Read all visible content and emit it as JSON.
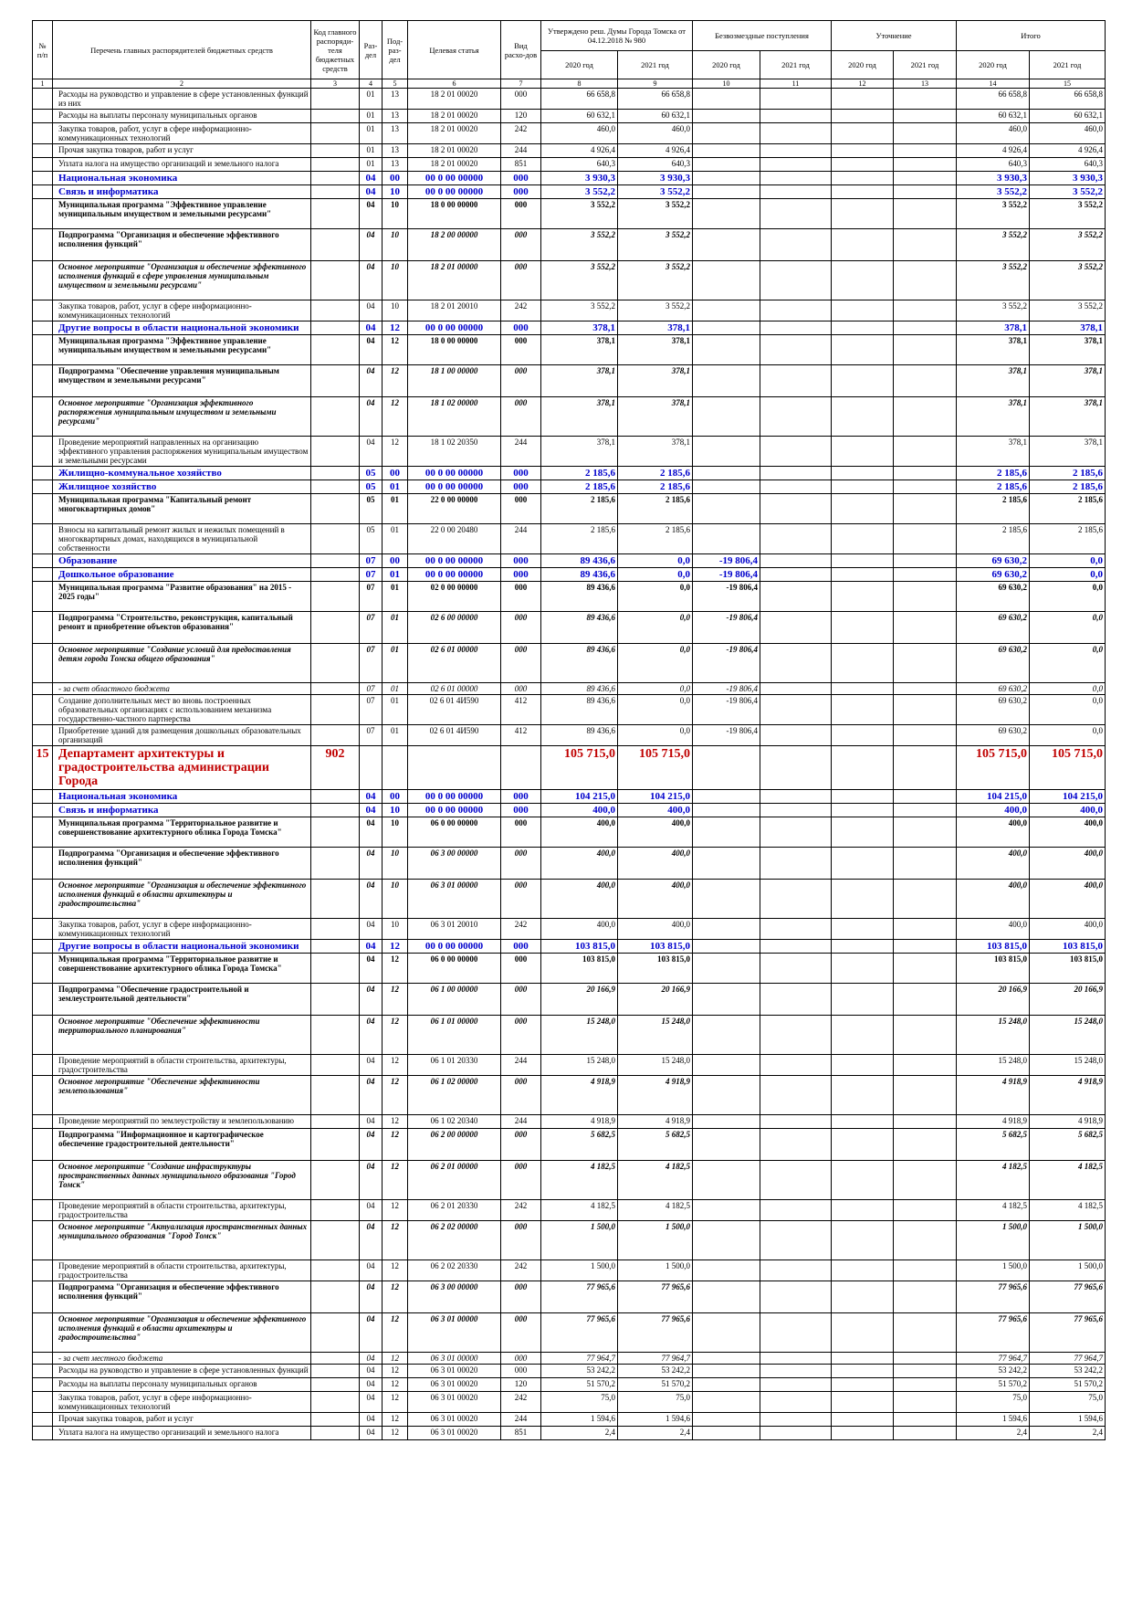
{
  "header": {
    "columns": [
      "№ п/п",
      "Перечень главных распорядителей бюджетных средств",
      "Код главного распоряди-теля бюджетных средств",
      "Раз-дел",
      "Под-раз-дел",
      "Целевая статья",
      "Вид расхо-дов"
    ],
    "groups": [
      "Утверждено реш. Думы Города Томска от 04.12.2018 № 980",
      "Безвозмездные поступления",
      "Уточнение",
      "Итого"
    ],
    "years": [
      "2020 год",
      "2021 год",
      "2020 год",
      "2021 год",
      "2020 год",
      "2021 год",
      "2020 год",
      "2021 год"
    ],
    "numbers": [
      "1",
      "2",
      "3",
      "4",
      "5",
      "6",
      "7",
      "8",
      "9",
      "10",
      "11",
      "12",
      "13",
      "14",
      "15"
    ]
  },
  "table": {
    "rows": [
      {
        "kind": "normal",
        "name": "Расходы на руководство и управление в сфере установленных функций из них",
        "sec": "01",
        "sub": "13",
        "target": "18 2 01 00020",
        "type": "000",
        "a20": "66 658,8",
        "a21": "66 658,8",
        "t20": "66 658,8",
        "t21": "66 658,8"
      },
      {
        "kind": "normal",
        "name": "Расходы на выплаты персоналу муниципальных органов",
        "sec": "01",
        "sub": "13",
        "target": "18 2 01 00020",
        "type": "120",
        "a20": "60 632,1",
        "a21": "60 632,1",
        "t20": "60 632,1",
        "t21": "60 632,1"
      },
      {
        "kind": "normal",
        "name": "Закупка товаров, работ, услуг в сфере информационно-коммуникационных технологий",
        "sec": "01",
        "sub": "13",
        "target": "18 2 01 00020",
        "type": "242",
        "a20": "460,0",
        "a21": "460,0",
        "t20": "460,0",
        "t21": "460,0"
      },
      {
        "kind": "normal",
        "name": "Прочая закупка товаров, работ и услуг",
        "sec": "01",
        "sub": "13",
        "target": "18 2 01 00020",
        "type": "244",
        "a20": "4 926,4",
        "a21": "4 926,4",
        "t20": "4 926,4",
        "t21": "4 926,4"
      },
      {
        "kind": "normal",
        "name": "Уплата налога на имущество организаций и земельного налога",
        "sec": "01",
        "sub": "13",
        "target": "18 2 01 00020",
        "type": "851",
        "a20": "640,3",
        "a21": "640,3",
        "t20": "640,3",
        "t21": "640,3"
      },
      {
        "kind": "blue",
        "name": "Национальная экономика",
        "sec": "04",
        "sub": "00",
        "target": "00 0 00 00000",
        "type": "000",
        "a20": "3 930,3",
        "a21": "3 930,3",
        "t20": "3 930,3",
        "t21": "3 930,3"
      },
      {
        "kind": "blue",
        "name": "Связь и информатика",
        "sec": "04",
        "sub": "10",
        "target": "00 0 00 00000",
        "type": "000",
        "a20": "3 552,2",
        "a21": "3 552,2",
        "t20": "3 552,2",
        "t21": "3 552,2"
      },
      {
        "kind": "program",
        "name": "Муниципальная программа \"Эффективное управление муниципальным имуществом и земельными ресурсами\"",
        "sec": "04",
        "sub": "10",
        "target": "18 0 00 00000",
        "type": "000",
        "a20": "3 552,2",
        "a21": "3 552,2",
        "t20": "3 552,2",
        "t21": "3 552,2"
      },
      {
        "kind": "subprogram",
        "name": "Подпрограмма \"Организация и обеспечение эффективного исполнения функций\"",
        "sec": "04",
        "sub": "10",
        "target": "18 2 00 00000",
        "type": "000",
        "a20": "3 552,2",
        "a21": "3 552,2",
        "t20": "3 552,2",
        "t21": "3 552,2"
      },
      {
        "kind": "measure",
        "name": "Основное мероприятие \"Организация и обеспечение эффективного исполнения функций в сфере управления муниципальным имуществом и земельными ресурсами\"",
        "sec": "04",
        "sub": "10",
        "target": "18 2 01 00000",
        "type": "000",
        "a20": "3 552,2",
        "a21": "3 552,2",
        "t20": "3 552,2",
        "t21": "3 552,2"
      },
      {
        "kind": "normal",
        "name": "Закупка товаров, работ, услуг в сфере информационно-коммуникационных технологий",
        "sec": "04",
        "sub": "10",
        "target": "18 2 01 20010",
        "type": "242",
        "a20": "3 552,2",
        "a21": "3 552,2",
        "t20": "3 552,2",
        "t21": "3 552,2"
      },
      {
        "kind": "blue",
        "name": "Другие вопросы в области национальной экономики",
        "sec": "04",
        "sub": "12",
        "target": "00 0 00 00000",
        "type": "000",
        "a20": "378,1",
        "a21": "378,1",
        "t20": "378,1",
        "t21": "378,1"
      },
      {
        "kind": "program",
        "name": "Муниципальная программа \"Эффективное управление муниципальным имуществом и земельными ресурсами\"",
        "sec": "04",
        "sub": "12",
        "target": "18 0 00 00000",
        "type": "000",
        "a20": "378,1",
        "a21": "378,1",
        "t20": "378,1",
        "t21": "378,1"
      },
      {
        "kind": "subprogram",
        "name": "Подпрограмма \"Обеспечение управления муниципальным имуществом и земельными ресурсами\"",
        "sec": "04",
        "sub": "12",
        "target": "18 1 00 00000",
        "type": "000",
        "a20": "378,1",
        "a21": "378,1",
        "t20": "378,1",
        "t21": "378,1"
      },
      {
        "kind": "measure",
        "name": "Основное мероприятие \"Организация эффективного распоряжения муниципальным имуществом и земельными ресурсами\"",
        "sec": "04",
        "sub": "12",
        "target": "18 1 02 00000",
        "type": "000",
        "a20": "378,1",
        "a21": "378,1",
        "t20": "378,1",
        "t21": "378,1"
      },
      {
        "kind": "normal",
        "name": "Проведение мероприятий направленных на организацию эффективного управления распоряжения муниципальным имуществом и земельными ресурсами",
        "sec": "04",
        "sub": "12",
        "target": "18 1 02 20350",
        "type": "244",
        "a20": "378,1",
        "a21": "378,1",
        "t20": "378,1",
        "t21": "378,1"
      },
      {
        "kind": "blue",
        "name": "Жилищно-коммунальное хозяйство",
        "sec": "05",
        "sub": "00",
        "target": "00 0 00 00000",
        "type": "000",
        "a20": "2 185,6",
        "a21": "2 185,6",
        "t20": "2 185,6",
        "t21": "2 185,6"
      },
      {
        "kind": "blue",
        "name": "Жилищное хозяйство",
        "sec": "05",
        "sub": "01",
        "target": "00 0 00 00000",
        "type": "000",
        "a20": "2 185,6",
        "a21": "2 185,6",
        "t20": "2 185,6",
        "t21": "2 185,6"
      },
      {
        "kind": "program",
        "name": "Муниципальная программа \"Капитальный ремонт многоквартирных домов\"",
        "sec": "05",
        "sub": "01",
        "target": "22 0 00 00000",
        "type": "000",
        "a20": "2 185,6",
        "a21": "2 185,6",
        "t20": "2 185,6",
        "t21": "2 185,6"
      },
      {
        "kind": "normal",
        "name": "Взносы на капитальный ремонт жилых и нежилых помещений в многоквартирных домах, находящихся в муниципальной собственности",
        "sec": "05",
        "sub": "01",
        "target": "22 0 00 20480",
        "type": "244",
        "a20": "2 185,6",
        "a21": "2 185,6",
        "t20": "2 185,6",
        "t21": "2 185,6"
      },
      {
        "kind": "blue",
        "name": "Образование",
        "sec": "07",
        "sub": "00",
        "target": "00 0 00 00000",
        "type": "000",
        "a20": "89 436,6",
        "a21": "0,0",
        "g20": "-19 806,4",
        "t20": "69 630,2",
        "t21": "0,0"
      },
      {
        "kind": "blue",
        "name": "Дошкольное образование",
        "sec": "07",
        "sub": "01",
        "target": "00 0 00 00000",
        "type": "000",
        "a20": "89 436,6",
        "a21": "0,0",
        "g20": "-19 806,4",
        "t20": "69 630,2",
        "t21": "0,0"
      },
      {
        "kind": "program",
        "name": "Муниципальная программа \"Развитие образования\" на 2015 - 2025 годы\"",
        "sec": "07",
        "sub": "01",
        "target": "02 0 00 00000",
        "type": "000",
        "a20": "89 436,6",
        "a21": "0,0",
        "g20": "-19 806,4",
        "t20": "69 630,2",
        "t21": "0,0"
      },
      {
        "kind": "subprogram",
        "name": "Подпрограмма \"Строительство, реконструкция, капитальный ремонт и приобретение объектов образования\"",
        "sec": "07",
        "sub": "01",
        "target": "02 6 00 00000",
        "type": "000",
        "a20": "89 436,6",
        "a21": "0,0",
        "g20": "-19 806,4",
        "t20": "69 630,2",
        "t21": "0,0"
      },
      {
        "kind": "measure",
        "name": "Основное мероприятие \"Создание условий для предоставления детям города Томска общего образования\"",
        "sec": "07",
        "sub": "01",
        "target": "02 6 01 00000",
        "type": "000",
        "a20": "89 436,6",
        "a21": "0,0",
        "g20": "-19 806,4",
        "t20": "69 630,2",
        "t21": "0,0"
      },
      {
        "kind": "source",
        "name": "- за счет областного бюджета",
        "sec": "07",
        "sub": "01",
        "target": "02 6 01 00000",
        "type": "000",
        "a20": "89 436,6",
        "a21": "0,0",
        "g20": "-19 806,4",
        "t20": "69 630,2",
        "t21": "0,0"
      },
      {
        "kind": "normal",
        "name": "Создание дополнительных мест во вновь построенных образовательных организациях с использованием механизма государственно-частного партнерства",
        "sec": "07",
        "sub": "01",
        "target": "02 6 01 4И590",
        "type": "412",
        "a20": "89 436,6",
        "a21": "0,0",
        "g20": "-19 806,4",
        "t20": "69 630,2",
        "t21": "0,0"
      },
      {
        "kind": "normal",
        "name": "Приобретение зданий для размещения дошкольных образовательных организаций",
        "sec": "07",
        "sub": "01",
        "target": "02 6 01 4И590",
        "type": "412",
        "a20": "89 436,6",
        "a21": "0,0",
        "g20": "-19 806,4",
        "t20": "69 630,2",
        "t21": "0,0"
      },
      {
        "kind": "dept",
        "num": "15",
        "name": "Департамент архитектуры и градостроительства администрации Города",
        "code": "902",
        "a20": "105 715,0",
        "a21": "105 715,0",
        "t20": "105 715,0",
        "t21": "105 715,0"
      },
      {
        "kind": "blue",
        "name": "Национальная экономика",
        "sec": "04",
        "sub": "00",
        "target": "00 0 00 00000",
        "type": "000",
        "a20": "104 215,0",
        "a21": "104 215,0",
        "t20": "104 215,0",
        "t21": "104 215,0"
      },
      {
        "kind": "blue",
        "name": "Связь и информатика",
        "sec": "04",
        "sub": "10",
        "target": "00 0 00 00000",
        "type": "000",
        "a20": "400,0",
        "a21": "400,0",
        "t20": "400,0",
        "t21": "400,0"
      },
      {
        "kind": "program",
        "name": "Муниципальная программа \"Территориальное развитие и совершенствование архитектурного облика Города Томска\"",
        "sec": "04",
        "sub": "10",
        "target": "06 0 00 00000",
        "type": "000",
        "a20": "400,0",
        "a21": "400,0",
        "t20": "400,0",
        "t21": "400,0"
      },
      {
        "kind": "subprogram",
        "name": "Подпрограмма \"Организация и обеспечение эффективного исполнения функций\"",
        "sec": "04",
        "sub": "10",
        "target": "06 3 00 00000",
        "type": "000",
        "a20": "400,0",
        "a21": "400,0",
        "t20": "400,0",
        "t21": "400,0"
      },
      {
        "kind": "measure",
        "name": "Основное мероприятие \"Организация и обеспечение эффективного исполнения функций в области архитектуры и градостроительства\"",
        "sec": "04",
        "sub": "10",
        "target": "06 3 01 00000",
        "type": "000",
        "a20": "400,0",
        "a21": "400,0",
        "t20": "400,0",
        "t21": "400,0"
      },
      {
        "kind": "normal",
        "name": "Закупка товаров, работ, услуг в сфере информационно-коммуникационных технологий",
        "sec": "04",
        "sub": "10",
        "target": "06 3 01 20010",
        "type": "242",
        "a20": "400,0",
        "a21": "400,0",
        "t20": "400,0",
        "t21": "400,0"
      },
      {
        "kind": "blue",
        "name": "Другие вопросы в области национальной экономики",
        "sec": "04",
        "sub": "12",
        "target": "00 0 00 00000",
        "type": "000",
        "a20": "103 815,0",
        "a21": "103 815,0",
        "t20": "103 815,0",
        "t21": "103 815,0"
      },
      {
        "kind": "program",
        "name": "Муниципальная программа \"Территориальное развитие и совершенствование архитектурного облика Города Томска\"",
        "sec": "04",
        "sub": "12",
        "target": "06 0 00 00000",
        "type": "000",
        "a20": "103 815,0",
        "a21": "103 815,0",
        "t20": "103 815,0",
        "t21": "103 815,0"
      },
      {
        "kind": "subprogram",
        "name": "Подпрограмма \"Обеспечение градостроительной и землеустроительной деятельности\"",
        "sec": "04",
        "sub": "12",
        "target": "06 1 00 00000",
        "type": "000",
        "a20": "20 166,9",
        "a21": "20 166,9",
        "t20": "20 166,9",
        "t21": "20 166,9"
      },
      {
        "kind": "measure",
        "name": "Основное мероприятие \"Обеспечение эффективности территориального планирования\"",
        "sec": "04",
        "sub": "12",
        "target": "06 1 01 00000",
        "type": "000",
        "a20": "15 248,0",
        "a21": "15 248,0",
        "t20": "15 248,0",
        "t21": "15 248,0"
      },
      {
        "kind": "normal",
        "name": "Проведение мероприятий в области строительства, архитектуры, градостроительства",
        "sec": "04",
        "sub": "12",
        "target": "06 1 01 20330",
        "type": "244",
        "a20": "15 248,0",
        "a21": "15 248,0",
        "t20": "15 248,0",
        "t21": "15 248,0"
      },
      {
        "kind": "measure",
        "name": "Основное мероприятие \"Обеспечение эффективности землепользования\"",
        "sec": "04",
        "sub": "12",
        "target": "06 1 02 00000",
        "type": "000",
        "a20": "4 918,9",
        "a21": "4 918,9",
        "t20": "4 918,9",
        "t21": "4 918,9"
      },
      {
        "kind": "normal",
        "name": "Проведение мероприятий по землеустройству и землепользованию",
        "sec": "04",
        "sub": "12",
        "target": "06 1 02 20340",
        "type": "244",
        "a20": "4 918,9",
        "a21": "4 918,9",
        "t20": "4 918,9",
        "t21": "4 918,9"
      },
      {
        "kind": "subprogram",
        "name": "Подпрограмма \"Информационное и картографическое обеспечение градостроительной деятельности\"",
        "sec": "04",
        "sub": "12",
        "target": "06 2 00 00000",
        "type": "000",
        "a20": "5 682,5",
        "a21": "5 682,5",
        "t20": "5 682,5",
        "t21": "5 682,5"
      },
      {
        "kind": "measure",
        "name": "Основное мероприятие \"Создание инфраструктуры пространственных данных муниципального образования \"Город Томск\"",
        "sec": "04",
        "sub": "12",
        "target": "06 2 01 00000",
        "type": "000",
        "a20": "4 182,5",
        "a21": "4 182,5",
        "t20": "4 182,5",
        "t21": "4 182,5"
      },
      {
        "kind": "normal",
        "name": "Проведение мероприятий в области строительства, архитектуры, градостроительства",
        "sec": "04",
        "sub": "12",
        "target": "06 2 01 20330",
        "type": "242",
        "a20": "4 182,5",
        "a21": "4 182,5",
        "t20": "4 182,5",
        "t21": "4 182,5"
      },
      {
        "kind": "measure",
        "name": "Основное мероприятие \"Актуализация пространственных данных муниципального образования \"Город Томск\"",
        "sec": "04",
        "sub": "12",
        "target": "06 2 02 00000",
        "type": "000",
        "a20": "1 500,0",
        "a21": "1 500,0",
        "t20": "1 500,0",
        "t21": "1 500,0"
      },
      {
        "kind": "normal",
        "name": "Проведение мероприятий в области строительства, архитектуры, градостроительства",
        "sec": "04",
        "sub": "12",
        "target": "06 2 02 20330",
        "type": "242",
        "a20": "1 500,0",
        "a21": "1 500,0",
        "t20": "1 500,0",
        "t21": "1 500,0"
      },
      {
        "kind": "subprogram",
        "name": "Подпрограмма \"Организация и обеспечение эффективного исполнения функций\"",
        "sec": "04",
        "sub": "12",
        "target": "06 3 00 00000",
        "type": "000",
        "a20": "77 965,6",
        "a21": "77 965,6",
        "t20": "77 965,6",
        "t21": "77 965,6"
      },
      {
        "kind": "measure",
        "name": "Основное мероприятие \"Организация и обеспечение эффективного исполнения функций в области архитектуры и градостроительства\"",
        "sec": "04",
        "sub": "12",
        "target": "06 3 01 00000",
        "type": "000",
        "a20": "77 965,6",
        "a21": "77 965,6",
        "t20": "77 965,6",
        "t21": "77 965,6"
      },
      {
        "kind": "source",
        "name": "- за счет местного бюджета",
        "sec": "04",
        "sub": "12",
        "target": "06 3 01 00000",
        "type": "000",
        "a20": "77 964,7",
        "a21": "77 964,7",
        "t20": "77 964,7",
        "t21": "77 964,7"
      },
      {
        "kind": "normal",
        "name": "Расходы на руководство и управление в сфере установленных функций",
        "sec": "04",
        "sub": "12",
        "target": "06 3 01 00020",
        "type": "000",
        "a20": "53 242,2",
        "a21": "53 242,2",
        "t20": "53 242,2",
        "t21": "53 242,2"
      },
      {
        "kind": "normal",
        "name": "Расходы на выплаты персоналу муниципальных органов",
        "sec": "04",
        "sub": "12",
        "target": "06 3 01 00020",
        "type": "120",
        "a20": "51 570,2",
        "a21": "51 570,2",
        "t20": "51 570,2",
        "t21": "51 570,2"
      },
      {
        "kind": "normal",
        "name": "Закупка товаров, работ, услуг в сфере информационно-коммуникационных технологий",
        "sec": "04",
        "sub": "12",
        "target": "06 3 01 00020",
        "type": "242",
        "a20": "75,0",
        "a21": "75,0",
        "t20": "75,0",
        "t21": "75,0"
      },
      {
        "kind": "normal",
        "name": "Прочая закупка товаров, работ и услуг",
        "sec": "04",
        "sub": "12",
        "target": "06 3 01 00020",
        "type": "244",
        "a20": "1 594,6",
        "a21": "1 594,6",
        "t20": "1 594,6",
        "t21": "1 594,6"
      },
      {
        "kind": "normal",
        "name": "Уплата налога на имущество организаций и земельного налога",
        "sec": "04",
        "sub": "12",
        "target": "06 3 01 00020",
        "type": "851",
        "a20": "2,4",
        "a21": "2,4",
        "t20": "2,4",
        "t21": "2,4"
      }
    ]
  }
}
